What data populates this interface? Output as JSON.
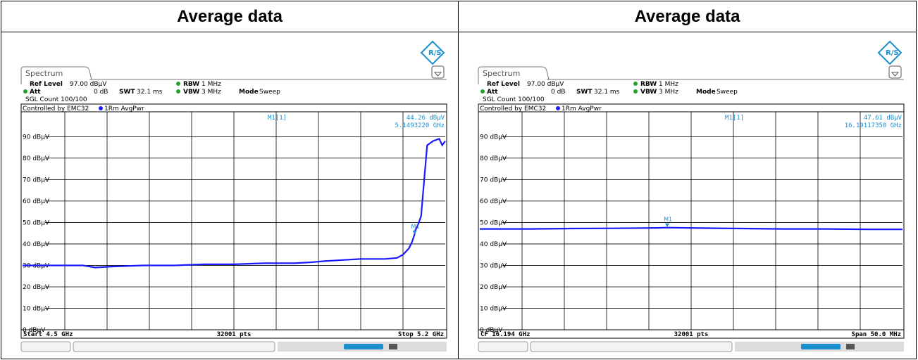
{
  "panels": [
    {
      "header": "Average data",
      "tab": "Spectrum",
      "ref_level_label": "Ref Level",
      "ref_level_value": "97.00 dBµV",
      "att_label": "Att",
      "att_value": "0 dB",
      "swt_label": "SWT",
      "swt_value": "32.1 ms",
      "rbw_label": "RBW",
      "rbw_value": "1 MHz",
      "vbw_label": "VBW",
      "vbw_value": "3 MHz",
      "mode_label": "Mode",
      "mode_value": "Sweep",
      "sgl_count": "SGL Count 100/100",
      "controlled_by": "Controlled by EMC32",
      "trace_label": "1Rm AvgPwr",
      "marker_label": "M1[1]",
      "marker_level": "44.26 dBµV",
      "marker_freq": "5.1493220 GHz",
      "marker_tag": "M1",
      "footer_left": "Start 4.5 GHz",
      "footer_mid": "32001 pts",
      "footer_right": "Stop 5.2 GHz"
    },
    {
      "header": "Average data",
      "tab": "Spectrum",
      "ref_level_label": "Ref Level",
      "ref_level_value": "97.00 dBµV",
      "att_label": "Att",
      "att_value": "0 dB",
      "swt_label": "SWT",
      "swt_value": "32.1 ms",
      "rbw_label": "RBW",
      "rbw_value": "1 MHz",
      "vbw_label": "VBW",
      "vbw_value": "3 MHz",
      "mode_label": "Mode",
      "mode_value": "Sweep",
      "sgl_count": "SGL Count 100/100",
      "controlled_by": "Controlled by EMC32",
      "trace_label": "1Rm AvgPwr",
      "marker_label": "M1[1]",
      "marker_level": "47.61 dBµV",
      "marker_freq": "16.19117350 GHz",
      "marker_tag": "M1",
      "footer_left": "CF 16.194 GHz",
      "footer_mid": "32001 pts",
      "footer_right": "Span 50.0 MHz"
    }
  ],
  "colors": {
    "trace": "#1a1aff",
    "marker": "#1a8fd0",
    "grid": "#000000"
  },
  "chart_data": [
    {
      "type": "line",
      "title": "Average data",
      "xlabel": "",
      "ylabel": "",
      "xlim": [
        4.5,
        5.2
      ],
      "x_unit": "GHz",
      "ylim": [
        0,
        97
      ],
      "yticks": [
        0,
        10,
        20,
        30,
        40,
        50,
        60,
        70,
        80,
        90
      ],
      "ytick_labels": [
        "0 dBµV",
        "10 dBµV",
        "20 dBµV",
        "30 dBµV",
        "40 dBµV",
        "50 dBµV",
        "60 dBµV",
        "70 dBµV",
        "80 dBµV",
        "90 dBµV"
      ],
      "grid": true,
      "series": [
        {
          "x": [
            4.5,
            4.55,
            4.6,
            4.62,
            4.65,
            4.7,
            4.75,
            4.8,
            4.85,
            4.9,
            4.95,
            4.98,
            5.0,
            5.03,
            5.06,
            5.1,
            5.12,
            5.13,
            5.14,
            5.145,
            5.149,
            5.15,
            5.155,
            5.16,
            5.17,
            5.18,
            5.19,
            5.195,
            5.2
          ],
          "y": [
            30,
            30,
            30,
            29,
            29.5,
            30,
            30,
            30.5,
            30.5,
            31,
            31,
            31.5,
            32,
            32.5,
            33,
            33,
            33.5,
            35,
            38,
            41,
            44.3,
            46,
            49,
            53,
            86,
            88,
            89,
            86,
            88
          ]
        }
      ],
      "marker": {
        "x": 5.149322,
        "y": 44.26
      }
    },
    {
      "type": "line",
      "title": "Average data",
      "xlabel": "",
      "ylabel": "",
      "xlim": [
        16.169,
        16.219
      ],
      "x_unit": "GHz",
      "ylim": [
        0,
        97
      ],
      "yticks": [
        0,
        10,
        20,
        30,
        40,
        50,
        60,
        70,
        80,
        90
      ],
      "ytick_labels": [
        "0 dBµV",
        "10 dBµV",
        "20 dBµV",
        "30 dBµV",
        "40 dBµV",
        "50 dBµV",
        "60 dBµV",
        "70 dBµV",
        "80 dBµV",
        "90 dBµV"
      ],
      "grid": true,
      "series": [
        {
          "x": [
            16.169,
            16.175,
            16.18,
            16.185,
            16.19,
            16.19117,
            16.195,
            16.2,
            16.205,
            16.21,
            16.215,
            16.219
          ],
          "y": [
            47,
            47,
            47.2,
            47.3,
            47.5,
            47.6,
            47.4,
            47.2,
            47,
            47,
            46.8,
            46.8
          ]
        }
      ],
      "marker": {
        "x": 16.1911735,
        "y": 47.61
      }
    }
  ]
}
